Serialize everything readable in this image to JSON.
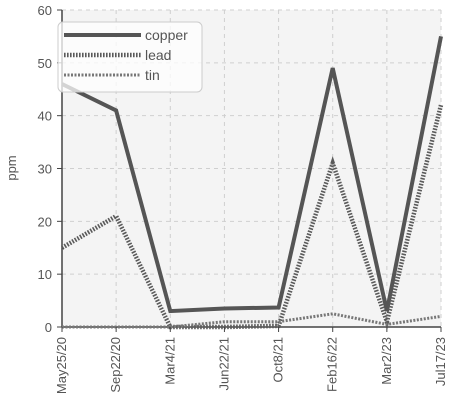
{
  "chart_data": {
    "type": "line",
    "title": "",
    "xlabel": "",
    "ylabel": "ppm",
    "ylim": [
      0,
      60
    ],
    "yticks": [
      0,
      10,
      20,
      30,
      40,
      50,
      60
    ],
    "grid": true,
    "legend_position": "top-left",
    "categories": [
      "May25/20",
      "Sep22/20",
      "Mar4/21",
      "Jun22/21",
      "Oct8/21",
      "Feb16/22",
      "Mar2/23",
      "Jul17/23"
    ],
    "series": [
      {
        "name": "copper",
        "values": [
          46,
          41,
          3,
          3.5,
          3.7,
          49,
          3,
          55
        ],
        "color": "#555555",
        "style": "solid"
      },
      {
        "name": "lead",
        "values": [
          15,
          21,
          0,
          0,
          0.2,
          31,
          1,
          42
        ],
        "color": "#5a5a5a",
        "style": "dotted"
      },
      {
        "name": "tin",
        "values": [
          0,
          0,
          0,
          1,
          1,
          2.5,
          0.5,
          2
        ],
        "color": "#777777",
        "style": "dashed"
      }
    ]
  }
}
